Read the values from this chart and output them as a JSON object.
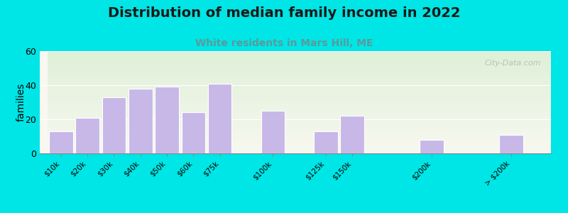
{
  "categories": [
    "$10k",
    "$20k",
    "$30k",
    "$40k",
    "$50k",
    "$60k",
    "$75k",
    "$100k",
    "$125k",
    "$150k",
    "$200k",
    "> $200k"
  ],
  "values": [
    13,
    21,
    33,
    38,
    39,
    24,
    41,
    25,
    13,
    22,
    8,
    11
  ],
  "bar_color": "#c8b8e8",
  "bar_edge_color": "#ffffff",
  "title": "Distribution of median family income in 2022",
  "subtitle": "White residents in Mars Hill, ME",
  "subtitle_color": "#5a9a9a",
  "ylabel": "families",
  "ylim": [
    0,
    60
  ],
  "yticks": [
    0,
    20,
    40,
    60
  ],
  "background_color": "#00e5e5",
  "plot_bg_color_top": "#dff0d8",
  "plot_bg_color_bottom": "#f8f8f0",
  "title_fontsize": 14,
  "subtitle_fontsize": 10,
  "ylabel_fontsize": 10,
  "watermark_text": "City-Data.com",
  "watermark_color": "#b0b8b0",
  "x_positions": [
    0,
    1,
    2,
    3,
    4,
    5,
    6,
    8,
    10,
    11,
    14,
    17
  ],
  "bar_width": 0.9
}
